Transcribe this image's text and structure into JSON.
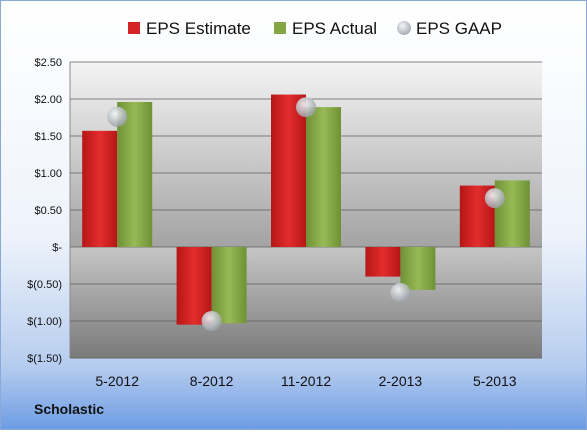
{
  "company": "Scholastic",
  "chart_data": {
    "type": "bar",
    "categories": [
      "5-2012",
      "8-2012",
      "11-2012",
      "2-2013",
      "5-2013"
    ],
    "series": [
      {
        "name": "EPS Estimate",
        "kind": "bar",
        "color": "#d42424",
        "values": [
          1.57,
          -1.05,
          2.06,
          -0.4,
          0.83
        ]
      },
      {
        "name": "EPS Actual",
        "kind": "bar",
        "color": "#84a644",
        "values": [
          1.96,
          -1.03,
          1.89,
          -0.58,
          0.9
        ]
      },
      {
        "name": "EPS GAAP",
        "kind": "scatter",
        "color": "#c8ccd2",
        "values": [
          1.76,
          -1.0,
          1.89,
          -0.62,
          0.66
        ]
      }
    ],
    "yticks": [
      {
        "value": 2.5,
        "label": "$2.50"
      },
      {
        "value": 2.0,
        "label": "$2.00"
      },
      {
        "value": 1.5,
        "label": "$1.50"
      },
      {
        "value": 1.0,
        "label": "$1.00"
      },
      {
        "value": 0.5,
        "label": "$0.50"
      },
      {
        "value": 0.0,
        "label": "$-"
      },
      {
        "value": -0.5,
        "label": "$(0.50)"
      },
      {
        "value": -1.0,
        "label": "$(1.00)"
      },
      {
        "value": -1.5,
        "label": "$(1.50)"
      }
    ],
    "ylim": [
      -1.5,
      2.5
    ],
    "grid": true,
    "legend_position": "top"
  }
}
